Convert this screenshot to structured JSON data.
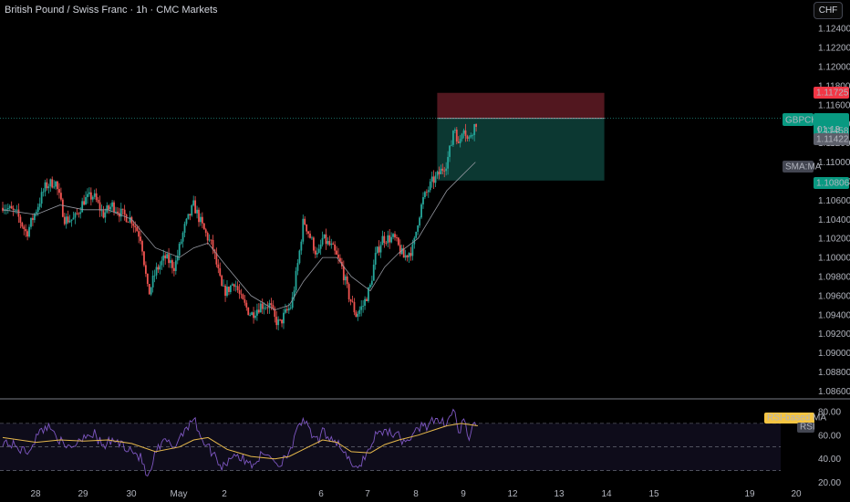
{
  "header": {
    "title": "British Pound / Swiss Franc · 1h · CMC Markets",
    "currency": "CHF"
  },
  "price_axis": {
    "ticks": [
      "1.12400",
      "1.12200",
      "1.12000",
      "1.11800",
      "1.11600",
      "1.11400",
      "1.11200",
      "1.11000",
      "1.10800",
      "1.10600",
      "1.10400",
      "1.10200",
      "1.10000",
      "1.09800",
      "1.09600",
      "1.09400",
      "1.09200",
      "1.09000",
      "1.08800",
      "1.08600"
    ]
  },
  "rsi_axis": {
    "ticks": [
      "80.00",
      "60.00",
      "40.00",
      "20.00"
    ]
  },
  "time_axis": {
    "ticks": [
      "28",
      "29",
      "30",
      "May",
      "2",
      "6",
      "7",
      "8",
      "9",
      "12",
      "13",
      "14",
      "15",
      "19",
      "20"
    ]
  },
  "labels": {
    "stop_price": "1.11725",
    "symbol": "GBPCHF",
    "last_price": "1.11458",
    "countdown": "01:13",
    "sma_value": "1.11422",
    "sma_name": "SMA:MA",
    "target_price": "1.10806",
    "rsi_ma_name": "RSI-based MA",
    "rsi_name": "RSI"
  },
  "colors": {
    "up": "#26a69a",
    "down": "#ef5350",
    "stop_zone": "#5b1a22",
    "target_zone": "#0d3b35",
    "sma": "#9598a1",
    "rsi": "#7e57c2",
    "rsi_ma": "#e5b84b",
    "target_label": "#089981",
    "stop_label": "#f23645"
  },
  "chart_data": {
    "type": "candlestick",
    "symbol": "GBPCHF",
    "timeframe": "1h",
    "ylim": [
      1.0855,
      1.1255
    ],
    "close_path": [
      [
        27.3,
        1.1055
      ],
      [
        27.6,
        1.1045
      ],
      [
        27.8,
        1.1025
      ],
      [
        28.0,
        1.105
      ],
      [
        28.2,
        1.1075
      ],
      [
        28.4,
        1.108
      ],
      [
        28.6,
        1.104
      ],
      [
        28.8,
        1.104
      ],
      [
        29.0,
        1.106
      ],
      [
        29.2,
        1.1065
      ],
      [
        29.4,
        1.1045
      ],
      [
        29.6,
        1.1055
      ],
      [
        29.8,
        1.1045
      ],
      [
        30.0,
        1.104
      ],
      [
        30.2,
        1.102
      ],
      [
        30.35,
        1.096
      ],
      [
        30.5,
        1.0985
      ],
      [
        30.7,
        1.1
      ],
      [
        30.9,
        1.099
      ],
      [
        31.1,
        1.103
      ],
      [
        31.3,
        1.1055
      ],
      [
        31.5,
        1.103
      ],
      [
        31.7,
        1.101
      ],
      [
        31.9,
        1.0965
      ],
      [
        32.0,
        1.0965
      ],
      [
        32.15,
        1.0975
      ],
      [
        32.3,
        1.0955
      ],
      [
        32.5,
        1.094
      ],
      [
        32.7,
        1.095
      ],
      [
        32.9,
        1.095
      ],
      [
        33.0,
        1.0935
      ],
      [
        33.1,
        1.093
      ],
      [
        33.2,
        1.094
      ],
      [
        33.35,
        1.095
      ],
      [
        33.5,
        1.1
      ],
      [
        33.6,
        1.104
      ],
      [
        33.75,
        1.102
      ],
      [
        33.9,
        1.1
      ],
      [
        34.0,
        1.102
      ],
      [
        34.2,
        1.101
      ],
      [
        34.4,
        1.099
      ],
      [
        34.55,
        1.096
      ],
      [
        34.7,
        1.094
      ],
      [
        34.85,
        1.095
      ],
      [
        35.0,
        1.097
      ],
      [
        35.1,
        1.1
      ],
      [
        35.25,
        1.102
      ],
      [
        35.5,
        1.102
      ],
      [
        35.7,
        1.1
      ],
      [
        35.9,
        1.101
      ],
      [
        36.0,
        1.104
      ],
      [
        36.1,
        1.106
      ],
      [
        36.2,
        1.107
      ],
      [
        36.3,
        1.108
      ],
      [
        36.4,
        1.1085
      ],
      [
        36.6,
        1.11
      ],
      [
        36.7,
        1.112
      ],
      [
        36.75,
        1.114
      ],
      [
        36.8,
        1.113
      ],
      [
        36.85,
        1.1115
      ],
      [
        36.9,
        1.113
      ],
      [
        36.95,
        1.114
      ],
      [
        37.0,
        1.113
      ],
      [
        37.05,
        1.112
      ],
      [
        37.1,
        1.113
      ],
      [
        37.2,
        1.114
      ],
      [
        37.25,
        1.1146
      ]
    ],
    "sma_path": [
      [
        27.3,
        1.105
      ],
      [
        28.0,
        1.1045
      ],
      [
        28.5,
        1.1055
      ],
      [
        29.0,
        1.105
      ],
      [
        29.5,
        1.105
      ],
      [
        30.0,
        1.104
      ],
      [
        30.5,
        1.101
      ],
      [
        31.0,
        1.1
      ],
      [
        31.3,
        1.101
      ],
      [
        31.6,
        1.1015
      ],
      [
        32.0,
        1.099
      ],
      [
        32.5,
        1.096
      ],
      [
        33.0,
        1.0945
      ],
      [
        33.3,
        1.095
      ],
      [
        33.6,
        1.0975
      ],
      [
        34.0,
        1.1
      ],
      [
        34.3,
        1.1
      ],
      [
        34.6,
        1.098
      ],
      [
        35.0,
        1.0965
      ],
      [
        35.3,
        1.099
      ],
      [
        35.6,
        1.1005
      ],
      [
        36.0,
        1.102
      ],
      [
        36.3,
        1.1045
      ],
      [
        36.6,
        1.107
      ],
      [
        36.9,
        1.1085
      ],
      [
        37.2,
        1.11
      ]
    ],
    "position": {
      "start_x": 36.4,
      "end_x": 39.9,
      "entry": 1.11458,
      "stop": 1.11725,
      "target": 1.10806
    },
    "rsi": {
      "ylim": [
        15,
        90
      ],
      "levels": [
        70,
        50,
        30
      ],
      "rsi_path": [
        [
          27.3,
          55
        ],
        [
          27.6,
          50
        ],
        [
          27.8,
          45
        ],
        [
          28.0,
          58
        ],
        [
          28.2,
          68
        ],
        [
          28.4,
          63
        ],
        [
          28.6,
          48
        ],
        [
          28.8,
          52
        ],
        [
          29.0,
          60
        ],
        [
          29.2,
          62
        ],
        [
          29.4,
          50
        ],
        [
          29.6,
          56
        ],
        [
          29.8,
          52
        ],
        [
          30.0,
          48
        ],
        [
          30.2,
          40
        ],
        [
          30.35,
          22
        ],
        [
          30.5,
          45
        ],
        [
          30.7,
          55
        ],
        [
          30.9,
          50
        ],
        [
          31.1,
          65
        ],
        [
          31.3,
          74
        ],
        [
          31.5,
          55
        ],
        [
          31.7,
          45
        ],
        [
          31.9,
          33
        ],
        [
          32.0,
          38
        ],
        [
          32.15,
          45
        ],
        [
          32.3,
          40
        ],
        [
          32.5,
          35
        ],
        [
          32.7,
          42
        ],
        [
          32.9,
          44
        ],
        [
          33.0,
          38
        ],
        [
          33.1,
          34
        ],
        [
          33.2,
          42
        ],
        [
          33.35,
          50
        ],
        [
          33.5,
          66
        ],
        [
          33.6,
          75
        ],
        [
          33.75,
          60
        ],
        [
          33.9,
          55
        ],
        [
          34.0,
          62
        ],
        [
          34.2,
          58
        ],
        [
          34.4,
          50
        ],
        [
          34.55,
          38
        ],
        [
          34.7,
          30
        ],
        [
          34.85,
          40
        ],
        [
          35.0,
          50
        ],
        [
          35.1,
          60
        ],
        [
          35.25,
          64
        ],
        [
          35.5,
          62
        ],
        [
          35.7,
          55
        ],
        [
          35.9,
          58
        ],
        [
          36.0,
          66
        ],
        [
          36.1,
          70
        ],
        [
          36.2,
          68
        ],
        [
          36.3,
          72
        ],
        [
          36.4,
          70
        ],
        [
          36.6,
          72
        ],
        [
          36.7,
          78
        ],
        [
          36.75,
          83
        ],
        [
          36.8,
          72
        ],
        [
          36.85,
          60
        ],
        [
          36.9,
          68
        ],
        [
          36.95,
          72
        ],
        [
          37.0,
          65
        ],
        [
          37.05,
          58
        ],
        [
          37.1,
          62
        ],
        [
          37.2,
          68
        ],
        [
          37.25,
          70
        ]
      ],
      "ma_path": [
        [
          27.3,
          58
        ],
        [
          28.0,
          54
        ],
        [
          28.5,
          56
        ],
        [
          29.0,
          55
        ],
        [
          29.5,
          56
        ],
        [
          30.0,
          53
        ],
        [
          30.5,
          46
        ],
        [
          31.0,
          50
        ],
        [
          31.3,
          56
        ],
        [
          31.6,
          58
        ],
        [
          32.0,
          48
        ],
        [
          32.5,
          42
        ],
        [
          33.0,
          40
        ],
        [
          33.3,
          42
        ],
        [
          33.6,
          48
        ],
        [
          34.0,
          56
        ],
        [
          34.3,
          54
        ],
        [
          34.6,
          46
        ],
        [
          35.0,
          45
        ],
        [
          35.3,
          52
        ],
        [
          35.6,
          56
        ],
        [
          36.0,
          60
        ],
        [
          36.3,
          64
        ],
        [
          36.6,
          68
        ],
        [
          36.9,
          70
        ],
        [
          37.25,
          68
        ]
      ]
    }
  }
}
